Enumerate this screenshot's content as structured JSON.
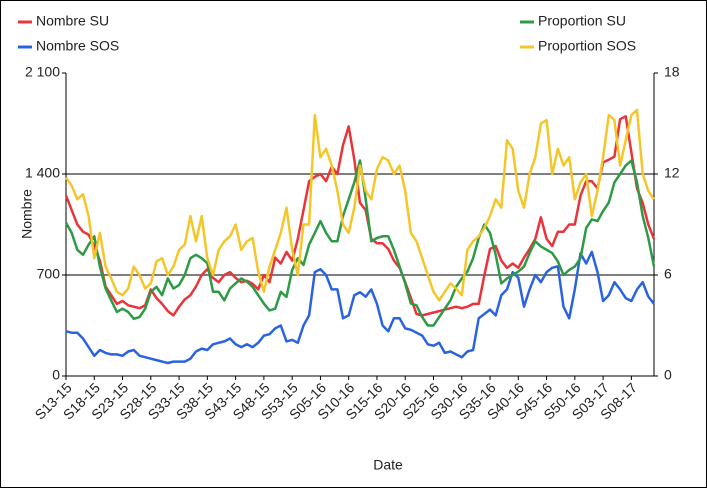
{
  "chart_data": {
    "type": "line",
    "x_label": "Date",
    "y_label": "Nombre",
    "categories": [
      "S13-15",
      null,
      null,
      null,
      null,
      "S18-15",
      null,
      null,
      null,
      null,
      "S23-15",
      null,
      null,
      null,
      null,
      "S28-15",
      null,
      null,
      null,
      null,
      "S33-15",
      null,
      null,
      null,
      null,
      "S38-15",
      null,
      null,
      null,
      null,
      "S43-15",
      null,
      null,
      null,
      null,
      "S48-15",
      null,
      null,
      null,
      null,
      "S53-15",
      null,
      null,
      null,
      null,
      "S05-16",
      null,
      null,
      null,
      null,
      "S10-16",
      null,
      null,
      null,
      null,
      "S15-16",
      null,
      null,
      null,
      null,
      "S20-16",
      null,
      null,
      null,
      null,
      "S25-16",
      null,
      null,
      null,
      null,
      "S30-16",
      null,
      null,
      null,
      null,
      "S35-16",
      null,
      null,
      null,
      null,
      "S40-16",
      null,
      null,
      null,
      null,
      "S45-16",
      null,
      null,
      null,
      null,
      "S50-16",
      null,
      null,
      null,
      null,
      "S03-17",
      null,
      null,
      null,
      null,
      "S08-17",
      null,
      null,
      null,
      null
    ],
    "series": [
      {
        "name": "Nombre SU",
        "color": "#e8343a",
        "values": [
          1250,
          1150,
          1050,
          1000,
          980,
          900,
          800,
          620,
          560,
          500,
          520,
          490,
          480,
          470,
          490,
          600,
          540,
          500,
          450,
          420,
          480,
          530,
          560,
          620,
          700,
          740,
          680,
          650,
          700,
          720,
          680,
          650,
          660,
          640,
          600,
          700,
          650,
          820,
          780,
          860,
          800,
          950,
          1150,
          1350,
          1380,
          1400,
          1350,
          1450,
          1400,
          1600,
          1730,
          1500,
          1200,
          1150,
          950,
          920,
          920,
          880,
          800,
          750,
          650,
          540,
          430,
          420,
          430,
          440,
          450,
          460,
          470,
          480,
          470,
          480,
          500,
          500,
          700,
          880,
          900,
          800,
          750,
          780,
          750,
          820,
          880,
          950,
          1100,
          950,
          900,
          1000,
          1000,
          1050,
          1050,
          1250,
          1350,
          1350,
          1300,
          1480,
          1500,
          1520,
          1780,
          1800,
          1550,
          1300,
          1200,
          1050,
          950
        ]
      },
      {
        "name": "Nombre SOS",
        "color": "#2a63e0",
        "values": [
          310,
          300,
          300,
          260,
          200,
          140,
          180,
          160,
          150,
          150,
          140,
          170,
          180,
          140,
          130,
          120,
          110,
          100,
          90,
          100,
          100,
          100,
          120,
          170,
          190,
          180,
          220,
          230,
          240,
          260,
          220,
          200,
          220,
          200,
          230,
          280,
          290,
          330,
          350,
          240,
          250,
          230,
          350,
          420,
          720,
          740,
          700,
          600,
          600,
          400,
          420,
          560,
          580,
          550,
          600,
          500,
          350,
          310,
          400,
          400,
          330,
          320,
          300,
          280,
          220,
          210,
          230,
          160,
          170,
          150,
          130,
          170,
          180,
          400,
          430,
          460,
          420,
          560,
          600,
          720,
          680,
          480,
          600,
          700,
          650,
          720,
          750,
          760,
          480,
          400,
          600,
          850,
          780,
          860,
          720,
          520,
          560,
          650,
          600,
          540,
          520,
          600,
          650,
          550,
          500
        ]
      },
      {
        "name": "Proportion SU",
        "color": "#2e9a45",
        "axis": "y2",
        "values": [
          9.1,
          8.5,
          7.5,
          7.2,
          7.8,
          8.3,
          6.5,
          5.2,
          4.5,
          3.8,
          4.0,
          3.8,
          3.4,
          3.5,
          4.0,
          5.0,
          5.3,
          4.8,
          5.8,
          5.2,
          5.4,
          6.0,
          7.0,
          7.2,
          7.0,
          6.7,
          5.0,
          5.0,
          4.5,
          5.2,
          5.5,
          5.8,
          5.6,
          5.3,
          4.8,
          4.3,
          3.9,
          4.0,
          5.0,
          4.7,
          6.3,
          7.0,
          6.6,
          7.8,
          8.5,
          9.2,
          8.5,
          8.0,
          8.0,
          9.5,
          10.5,
          11.5,
          12.8,
          10.5,
          8.0,
          8.2,
          8.3,
          8.3,
          7.5,
          6.5,
          5.5,
          4.3,
          4.2,
          3.5,
          3.0,
          3.0,
          3.5,
          4.0,
          4.5,
          5.3,
          5.8,
          6.2,
          7.0,
          8.2,
          9.0,
          8.5,
          7.2,
          5.5,
          5.8,
          6.0,
          6.2,
          6.5,
          7.3,
          8.0,
          7.7,
          7.5,
          7.3,
          6.8,
          6.0,
          6.3,
          6.5,
          7.0,
          8.8,
          9.3,
          9.2,
          9.8,
          10.3,
          11.5,
          12.0,
          12.5,
          12.8,
          11.5,
          9.5,
          8.2,
          6.5
        ]
      },
      {
        "name": "Proportion SOS",
        "color": "#f5c62a",
        "axis": "y2",
        "values": [
          11.8,
          11.3,
          10.5,
          10.8,
          9.5,
          7.0,
          8.5,
          6.5,
          5.8,
          5.0,
          4.8,
          5.2,
          6.5,
          6.0,
          5.2,
          5.5,
          6.8,
          7.0,
          6.0,
          6.5,
          7.5,
          7.8,
          9.5,
          8.0,
          9.5,
          7.0,
          6.0,
          7.5,
          8.0,
          8.3,
          9.0,
          7.5,
          8.0,
          8.2,
          6.2,
          5.0,
          6.5,
          7.5,
          8.5,
          10.0,
          7.5,
          6.0,
          9.0,
          9.0,
          15.5,
          13.0,
          13.5,
          12.5,
          11.0,
          9.0,
          8.5,
          10.0,
          12.5,
          11.0,
          10.5,
          12.3,
          13.0,
          12.8,
          12.0,
          12.5,
          11.0,
          8.5,
          8.0,
          7.0,
          6.0,
          5.0,
          4.5,
          5.0,
          5.5,
          5.2,
          4.8,
          7.5,
          8.0,
          8.3,
          8.8,
          9.5,
          10.5,
          10.0,
          14.0,
          13.5,
          11.0,
          10.0,
          12.0,
          13.0,
          15.0,
          15.2,
          12.0,
          13.5,
          12.5,
          13.0,
          10.5,
          11.5,
          12.0,
          9.5,
          11.0,
          13.0,
          15.5,
          15.2,
          12.5,
          14.0,
          15.5,
          15.8,
          12.0,
          11.0,
          10.5
        ]
      }
    ],
    "ylim": [
      0,
      2100
    ],
    "yticks": [
      0,
      700,
      {
        "value": 1400,
        "label": "1 400"
      },
      {
        "value": 2100,
        "label": "2 100"
      }
    ],
    "y2lim": [
      0,
      18
    ],
    "y2ticks": [
      0,
      6,
      12,
      18
    ],
    "grid": true
  }
}
